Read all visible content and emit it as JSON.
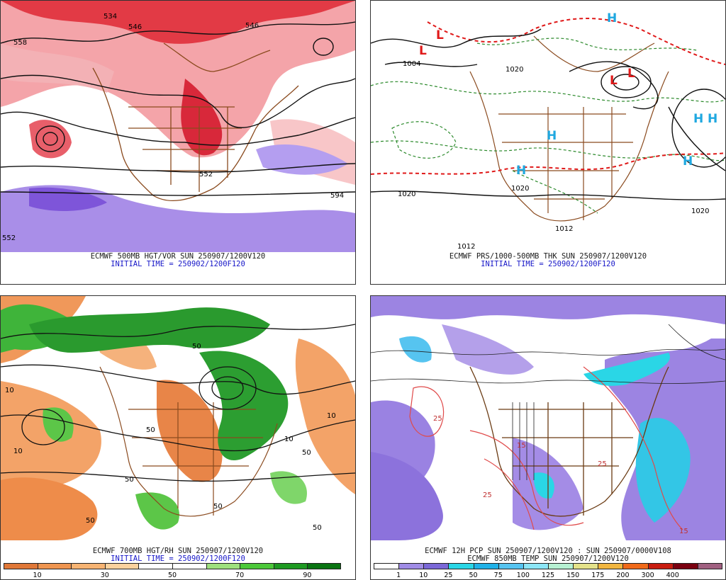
{
  "panels": [
    {
      "id": "p1",
      "caption_line1": "ECMWF 500MB HGT/VOR SUN 250907/1200V120",
      "caption_line2": "INITIAL TIME = 250902/1200F120",
      "labels": [
        "534",
        "546",
        "546",
        "558",
        "552",
        "594",
        "552"
      ]
    },
    {
      "id": "p2",
      "caption_line1": "ECMWF PRS/1000-500MB THK SUN 250907/1200V120",
      "caption_line2": "INITIAL TIME = 250902/1200F120",
      "labels": [
        "1004",
        "1020",
        "1020",
        "1012",
        "1020",
        "1020",
        "1012"
      ],
      "highs": [
        "H",
        "H",
        "H",
        "H",
        "H",
        "H"
      ],
      "lows": [
        "L",
        "L",
        "L",
        "L"
      ]
    },
    {
      "id": "p3",
      "caption_line1": "ECMWF 700MB HGT/RH SUN 250907/1200V120",
      "caption_line2": "INITIAL TIME = 250902/1200F120",
      "labels": [
        "10",
        "50",
        "50",
        "10",
        "50",
        "50",
        "10",
        "50",
        "50",
        "50",
        "10"
      ]
    },
    {
      "id": "p4",
      "caption_line1": "ECMWF 12H PCP SUN 250907/1200V120 : SUN 250907/0000V108",
      "caption_line2": "ECMWF 850MB TEMP SUN 250907/1200V120",
      "labels": [
        "25",
        "25",
        "15",
        "25",
        "15"
      ]
    }
  ],
  "legend_rh": {
    "colors": [
      "#e07838",
      "#ef9550",
      "#f7b473",
      "#fbd29e",
      "#ffffff",
      "#ffffff",
      "#9ee07e",
      "#4cc83a",
      "#1e9a22",
      "#0a7412"
    ],
    "ticks": [
      "10",
      "30",
      "50",
      "70",
      "90"
    ]
  },
  "legend_pcp": {
    "colors": [
      "#ffffff",
      "#a08ce6",
      "#7b68d8",
      "#2ad6e6",
      "#21b2e8",
      "#56c4f0",
      "#8ce6f6",
      "#b6f0d2",
      "#e4e28a",
      "#f1b640",
      "#f06a1a",
      "#c81d10",
      "#7a0010",
      "#a06080"
    ],
    "ticks": [
      "1",
      "10",
      "25",
      "50",
      "75",
      "100",
      "125",
      "150",
      "175",
      "200",
      "300",
      "400"
    ]
  }
}
